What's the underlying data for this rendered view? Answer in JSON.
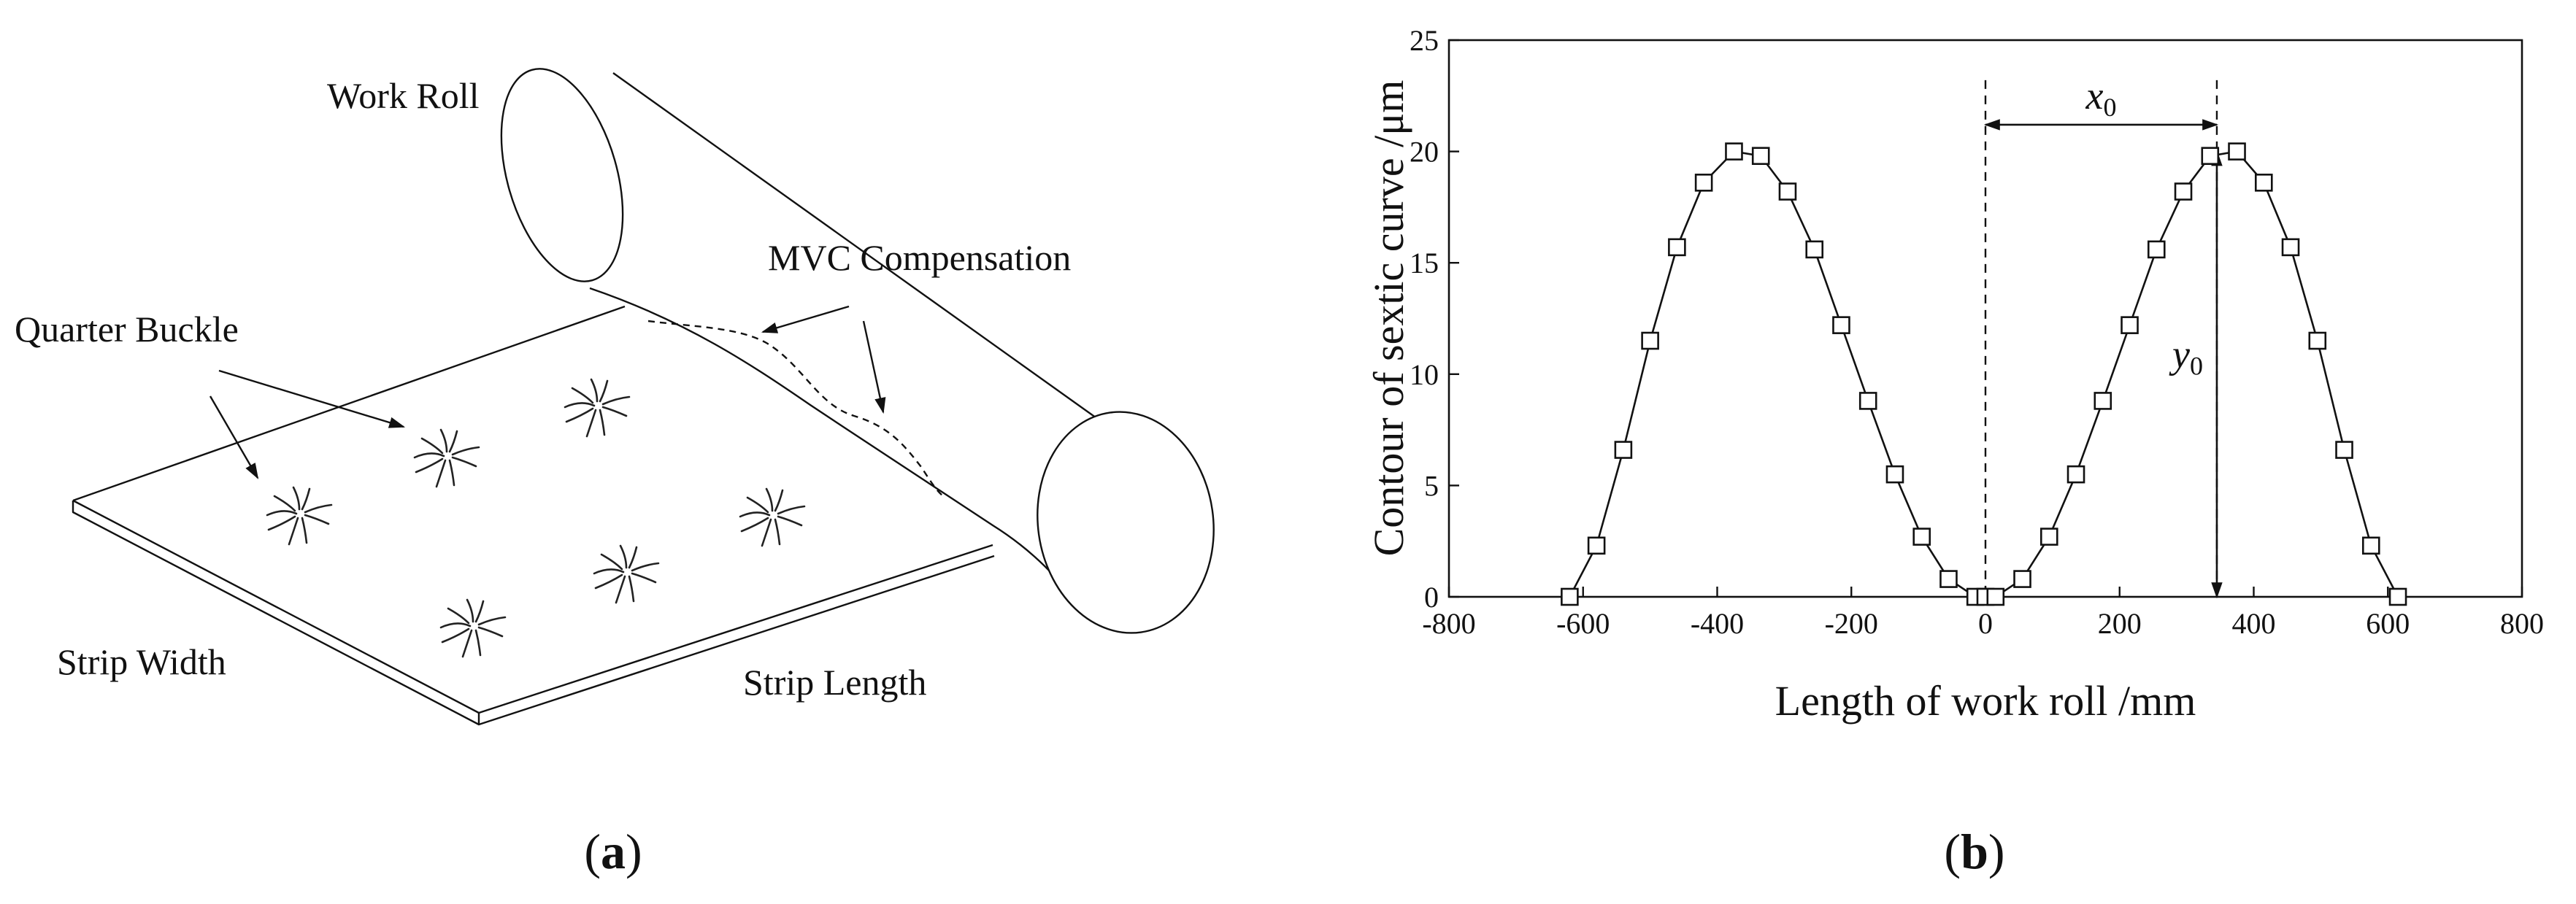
{
  "panel_a": {
    "tag_open": "(",
    "tag_letter": "a",
    "tag_close": ")",
    "labels": {
      "work_roll": "Work Roll",
      "mvc_compensation": "MVC Compensation",
      "quarter_buckle": "Quarter Buckle",
      "strip_width": "Strip Width",
      "strip_length": "Strip Length"
    }
  },
  "panel_b": {
    "tag_open": "(",
    "tag_letter": "b",
    "tag_close": ")",
    "x0_symbol": "x",
    "x0_sub": "0",
    "y0_symbol": "y",
    "y0_sub": "0"
  },
  "chart_data": {
    "type": "line",
    "xlabel": "Length of work roll /mm",
    "ylabel": "Contour of sextic curve /μm",
    "xlim": [
      -800,
      800
    ],
    "ylim": [
      0,
      25
    ],
    "xticks": [
      -800,
      -600,
      -400,
      -200,
      0,
      200,
      400,
      600,
      800
    ],
    "yticks": [
      0,
      5,
      10,
      15,
      20,
      25
    ],
    "marker": "open-square",
    "series": [
      {
        "x": [
          -620,
          -580,
          -540,
          -500,
          -460,
          -420,
          -375,
          -335,
          -295,
          -255,
          -215,
          -175,
          -135,
          -95,
          -55,
          -15,
          0,
          15,
          55,
          95,
          135,
          175,
          215,
          255,
          295,
          335,
          375,
          415,
          455,
          495,
          535,
          575,
          615
        ],
        "y": [
          0,
          2.3,
          6.6,
          11.5,
          15.7,
          18.6,
          20.0,
          19.8,
          18.2,
          15.6,
          12.2,
          8.8,
          5.5,
          2.7,
          0.8,
          0.0,
          0.0,
          0.0,
          0.8,
          2.7,
          5.5,
          8.8,
          12.2,
          15.6,
          18.2,
          19.8,
          20.0,
          18.6,
          15.7,
          11.5,
          6.6,
          2.3,
          0
        ]
      }
    ],
    "annotations": {
      "dashed_vertical_lines_x": [
        0,
        345
      ],
      "x0_arrow": {
        "from_x": 0,
        "to_x": 345,
        "y": 21.2
      },
      "y0_arrow": {
        "x": 345,
        "from_y": 20.0,
        "to_y": 0
      }
    }
  }
}
